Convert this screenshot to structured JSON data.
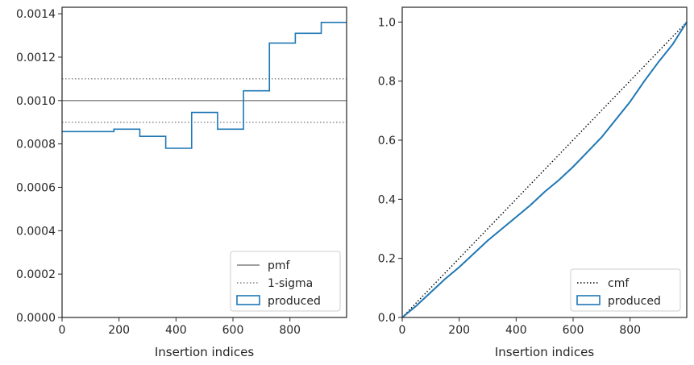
{
  "chart_data": [
    {
      "type": "line",
      "name": "left-panel",
      "xlabel": "Insertion indices",
      "ylabel": "",
      "xlim": [
        0,
        999
      ],
      "ylim": [
        0,
        0.00143
      ],
      "x_ticks": [
        0,
        200,
        400,
        600,
        800
      ],
      "x_tick_labels": [
        "0",
        "200",
        "400",
        "600",
        "800"
      ],
      "y_ticks": [
        0,
        0.0002,
        0.0004,
        0.0006,
        0.0008,
        0.001,
        0.0012,
        0.0014
      ],
      "y_tick_labels": [
        "0.0000",
        "0.0002",
        "0.0004",
        "0.0006",
        "0.0008",
        "0.0010",
        "0.0012",
        "0.0014"
      ],
      "grid": false,
      "legend_position": "bottom-right",
      "series": [
        {
          "name": "pmf",
          "style": "solid",
          "color": "#808080",
          "x": [
            0,
            999
          ],
          "y": [
            0.001,
            0.001
          ]
        },
        {
          "name": "1-sigma",
          "style": "dotted",
          "color": "#808080",
          "lines_y": [
            0.0011,
            0.0009
          ]
        },
        {
          "name": "produced",
          "style": "step",
          "color": "#1f77b4",
          "bin_edges": [
            0,
            182,
            273,
            364,
            455,
            546,
            637,
            728,
            819,
            910,
            999
          ],
          "values": [
            0.000857,
            0.000868,
            0.000835,
            0.00078,
            0.000945,
            0.000868,
            0.001045,
            0.001265,
            0.00131,
            0.00136
          ]
        }
      ]
    },
    {
      "type": "line",
      "name": "right-panel",
      "xlabel": "Insertion indices",
      "ylabel": "",
      "xlim": [
        0,
        999
      ],
      "ylim": [
        0,
        1.05
      ],
      "x_ticks": [
        0,
        200,
        400,
        600,
        800
      ],
      "x_tick_labels": [
        "0",
        "200",
        "400",
        "600",
        "800"
      ],
      "y_ticks": [
        0,
        0.2,
        0.4,
        0.6,
        0.8,
        1.0
      ],
      "y_tick_labels": [
        "0.0",
        "0.2",
        "0.4",
        "0.6",
        "0.8",
        "1.0"
      ],
      "grid": false,
      "legend_position": "bottom-right",
      "series": [
        {
          "name": "cmf",
          "style": "dotted",
          "color": "#000000",
          "x": [
            0,
            999
          ],
          "y": [
            0,
            1.0
          ]
        },
        {
          "name": "produced",
          "style": "line",
          "color": "#1f77b4",
          "x": [
            0,
            50,
            100,
            150,
            200,
            250,
            300,
            350,
            400,
            450,
            500,
            550,
            600,
            650,
            700,
            750,
            800,
            850,
            900,
            950,
            999
          ],
          "y": [
            0,
            0.04,
            0.085,
            0.13,
            0.17,
            0.215,
            0.26,
            0.3,
            0.34,
            0.38,
            0.425,
            0.465,
            0.51,
            0.56,
            0.61,
            0.67,
            0.73,
            0.8,
            0.865,
            0.925,
            1.0
          ]
        }
      ]
    }
  ]
}
